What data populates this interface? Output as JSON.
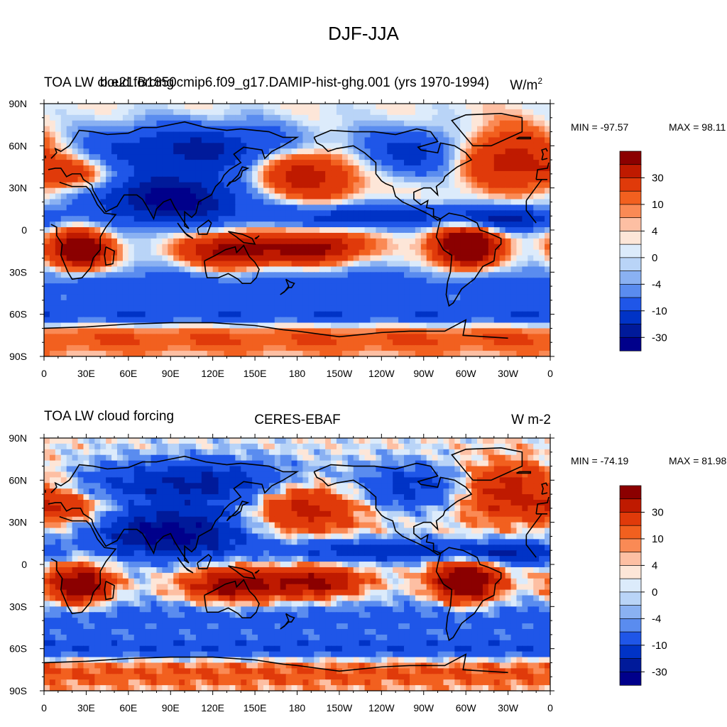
{
  "figure": {
    "title": "DJF-JJA"
  },
  "colors": {
    "palette": [
      "#8b0000",
      "#bf1a00",
      "#e03a0a",
      "#f2601f",
      "#fa8a55",
      "#fdbfa3",
      "#fde6d8",
      "#dcebfb",
      "#b9d4f7",
      "#8ab1f2",
      "#5a8cef",
      "#1f56e8",
      "#0033c6",
      "#001a9a",
      "#00008b"
    ],
    "land": "#000000",
    "frame": "#000000"
  },
  "chart_data": [
    {
      "type": "heatmap",
      "left_title": "TOA LW cloud forcing",
      "center_title": "b.e21.B1850cmip6.f09_g17.DAMIP-hist-ghg.001 (yrs 1970-1994)",
      "units": "W/m",
      "units_superscript": "2",
      "min_label": "MIN = -97.57",
      "max_label": "MAX =  98.11",
      "min": -97.57,
      "max": 98.11,
      "x_ticks": [
        "0",
        "30E",
        "60E",
        "90E",
        "120E",
        "150E",
        "180",
        "150W",
        "120W",
        "90W",
        "60W",
        "30W",
        "0"
      ],
      "y_ticks": [
        "90N",
        "60N",
        "30N",
        "0",
        "30S",
        "60S",
        "90S"
      ],
      "xlim": [
        0,
        360
      ],
      "ylim": [
        -90,
        90
      ],
      "levels": [
        -50,
        -40,
        -30,
        -20,
        -10,
        -6,
        -4,
        -2,
        0,
        2,
        4,
        6,
        10,
        20,
        30,
        40
      ],
      "colorbar_labels": [
        "30",
        "10",
        "4",
        "0",
        "-4",
        "-10",
        "-30"
      ],
      "dataset": "model"
    },
    {
      "type": "heatmap",
      "left_title": "TOA LW cloud forcing",
      "center_title": "CERES-EBAF",
      "units": "W m-2",
      "units_superscript": "",
      "min_label": "MIN = -74.19",
      "max_label": "MAX =  81.98",
      "min": -74.19,
      "max": 81.98,
      "x_ticks": [
        "0",
        "30E",
        "60E",
        "90E",
        "120E",
        "150E",
        "180",
        "150W",
        "120W",
        "90W",
        "60W",
        "30W",
        "0"
      ],
      "y_ticks": [
        "90N",
        "60N",
        "30N",
        "0",
        "30S",
        "60S",
        "90S"
      ],
      "xlim": [
        0,
        360
      ],
      "ylim": [
        -90,
        90
      ],
      "levels": [
        -50,
        -40,
        -30,
        -20,
        -10,
        -6,
        -4,
        -2,
        0,
        2,
        4,
        6,
        10,
        20,
        30,
        40
      ],
      "colorbar_labels": [
        "30",
        "10",
        "4",
        "0",
        "-4",
        "-10",
        "-30"
      ],
      "dataset": "obs"
    }
  ]
}
